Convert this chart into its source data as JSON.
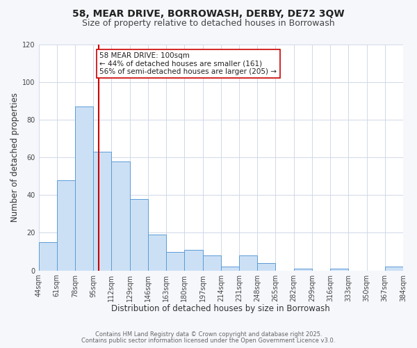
{
  "title": "58, MEAR DRIVE, BORROWASH, DERBY, DE72 3QW",
  "subtitle": "Size of property relative to detached houses in Borrowash",
  "xlabel": "Distribution of detached houses by size in Borrowash",
  "ylabel": "Number of detached properties",
  "bar_left_edges": [
    44,
    61,
    78,
    95,
    112,
    129,
    146,
    163,
    180,
    197,
    214,
    231,
    248,
    265,
    282,
    299,
    316,
    333,
    350,
    367
  ],
  "bar_heights": [
    15,
    48,
    87,
    63,
    58,
    38,
    19,
    10,
    11,
    8,
    2,
    8,
    4,
    0,
    1,
    0,
    1,
    0,
    0,
    2
  ],
  "bin_width": 17,
  "bar_color": "#cce0f5",
  "bar_edge_color": "#5b9bd5",
  "vline_x": 100,
  "vline_color": "#cc0000",
  "ylim": [
    0,
    120
  ],
  "xlim": [
    44,
    384
  ],
  "xtick_labels": [
    "44sqm",
    "61sqm",
    "78sqm",
    "95sqm",
    "112sqm",
    "129sqm",
    "146sqm",
    "163sqm",
    "180sqm",
    "197sqm",
    "214sqm",
    "231sqm",
    "248sqm",
    "265sqm",
    "282sqm",
    "299sqm",
    "316sqm",
    "333sqm",
    "350sqm",
    "367sqm",
    "384sqm"
  ],
  "xtick_positions": [
    44,
    61,
    78,
    95,
    112,
    129,
    146,
    163,
    180,
    197,
    214,
    231,
    248,
    265,
    282,
    299,
    316,
    333,
    350,
    367,
    384
  ],
  "ytick_positions": [
    0,
    20,
    40,
    60,
    80,
    100,
    120
  ],
  "annotation_title": "58 MEAR DRIVE: 100sqm",
  "annotation_line1": "← 44% of detached houses are smaller (161)",
  "annotation_line2": "56% of semi-detached houses are larger (205) →",
  "footer_line1": "Contains HM Land Registry data © Crown copyright and database right 2025.",
  "footer_line2": "Contains public sector information licensed under the Open Government Licence v3.0.",
  "bg_color": "#f5f7fb",
  "plot_bg_color": "#ffffff",
  "grid_color": "#d0d8e8",
  "title_fontsize": 10,
  "subtitle_fontsize": 9,
  "axis_label_fontsize": 8.5,
  "tick_fontsize": 7,
  "annotation_fontsize": 7.5,
  "footer_fontsize": 6
}
